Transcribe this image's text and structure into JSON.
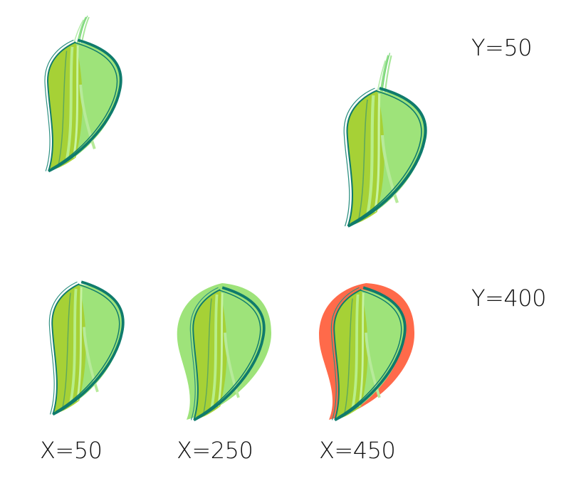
{
  "labels": {
    "row1": "Y=50",
    "row2": "Y=400",
    "col1": "X=50",
    "col2": "X=250",
    "col3": "X=450"
  },
  "colors": {
    "leaf_light": "#9ee37a",
    "leaf_mid": "#a6d136",
    "outline": "#0f7b6c",
    "stem": "#8fdf88",
    "halo_green": "#9ee37a",
    "halo_red": "#ff6a4a"
  }
}
